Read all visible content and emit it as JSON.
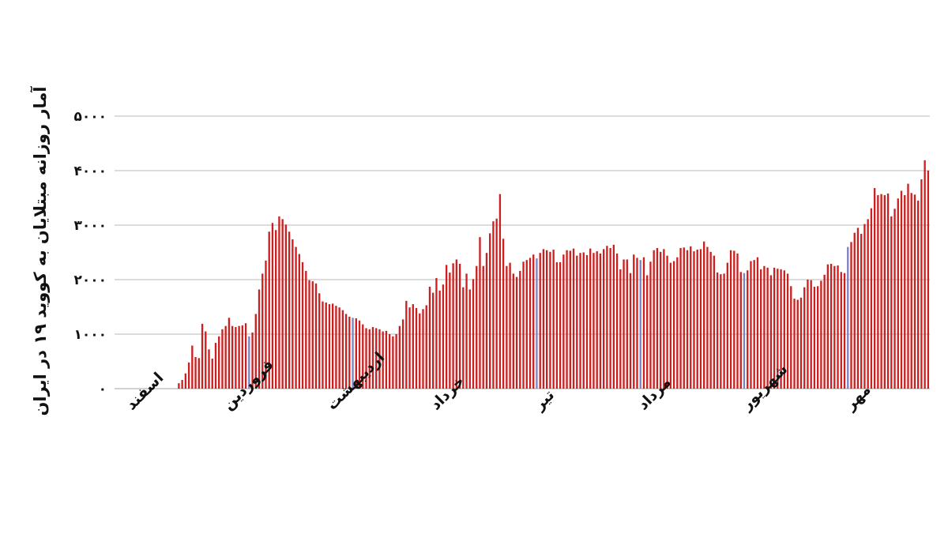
{
  "chart_data": {
    "type": "bar",
    "title": "",
    "ylabel": "آمار روزانه مبتلایان به کووید ۱۹ در ایران",
    "xlabel": "",
    "ylim": [
      0,
      5000
    ],
    "yticks": [
      {
        "value": 0,
        "label": "۰"
      },
      {
        "value": 1000,
        "label": "۱۰۰۰"
      },
      {
        "value": 2000,
        "label": "۲۰۰۰"
      },
      {
        "value": 3000,
        "label": "۳۰۰۰"
      },
      {
        "value": 4000,
        "label": "۴۰۰۰"
      },
      {
        "value": 5000,
        "label": "۵۰۰۰"
      }
    ],
    "grid": true,
    "legend": "none",
    "months": [
      {
        "label": "اسفند",
        "day": 0
      },
      {
        "label": "فروردین",
        "day": 29
      },
      {
        "label": "اردیبهشت",
        "day": 60
      },
      {
        "label": "خرداد",
        "day": 91
      },
      {
        "label": "تیر",
        "day": 122
      },
      {
        "label": "مرداد",
        "day": 153
      },
      {
        "label": "شهریور",
        "day": 184
      },
      {
        "label": "مهر",
        "day": 215
      }
    ],
    "colors": {
      "bar": "#cc1f1f",
      "highlight": "#7b82c2"
    },
    "highlighted_days": [
      35,
      66,
      121,
      152,
      183,
      214
    ],
    "values": [
      0,
      0,
      0,
      0,
      0,
      0,
      0,
      0,
      0,
      0,
      0,
      0,
      0,
      0,
      100,
      160,
      280,
      480,
      790,
      580,
      560,
      1190,
      1050,
      720,
      550,
      840,
      960,
      1090,
      1150,
      1300,
      1150,
      1130,
      1150,
      1160,
      1200,
      960,
      1030,
      1370,
      1820,
      2110,
      2350,
      2880,
      3040,
      2910,
      3160,
      3110,
      3010,
      2880,
      2740,
      2600,
      2470,
      2320,
      2160,
      1990,
      1970,
      1930,
      1750,
      1600,
      1580,
      1550,
      1560,
      1520,
      1490,
      1440,
      1370,
      1320,
      1300,
      1290,
      1250,
      1180,
      1110,
      1090,
      1130,
      1110,
      1090,
      1050,
      1060,
      1000,
      960,
      1000,
      1150,
      1270,
      1610,
      1490,
      1550,
      1480,
      1380,
      1460,
      1530,
      1870,
      1760,
      2030,
      1800,
      1910,
      2270,
      2130,
      2300,
      2370,
      2290,
      1860,
      2110,
      1820,
      2010,
      2250,
      2780,
      2250,
      2490,
      2850,
      3070,
      3120,
      3570,
      2750,
      2250,
      2310,
      2110,
      2050,
      2160,
      2330,
      2360,
      2400,
      2460,
      2390,
      2490,
      2560,
      2540,
      2510,
      2550,
      2320,
      2320,
      2460,
      2540,
      2530,
      2570,
      2440,
      2490,
      2500,
      2450,
      2570,
      2490,
      2520,
      2480,
      2560,
      2620,
      2580,
      2640,
      2480,
      2190,
      2370,
      2370,
      2120,
      2460,
      2400,
      2360,
      2410,
      2080,
      2330,
      2540,
      2580,
      2510,
      2560,
      2440,
      2310,
      2340,
      2410,
      2580,
      2590,
      2540,
      2610,
      2520,
      2550,
      2560,
      2700,
      2600,
      2510,
      2440,
      2130,
      2100,
      2110,
      2310,
      2540,
      2530,
      2480,
      2140,
      2120,
      2170,
      2340,
      2360,
      2410,
      2190,
      2250,
      2220,
      2080,
      2220,
      2200,
      2190,
      2170,
      2110,
      1880,
      1650,
      1630,
      1670,
      1860,
      2000,
      1990,
      1870,
      1880,
      1980,
      2090,
      2280,
      2290,
      2250,
      2260,
      2140,
      2120,
      2600,
      2690,
      2860,
      2950,
      2840,
      3020,
      3110,
      3310,
      3680,
      3550,
      3570,
      3550,
      3580,
      3160,
      3300,
      3490,
      3630,
      3550,
      3760,
      3590,
      3560,
      3450,
      3840,
      4190,
      4000
    ]
  }
}
